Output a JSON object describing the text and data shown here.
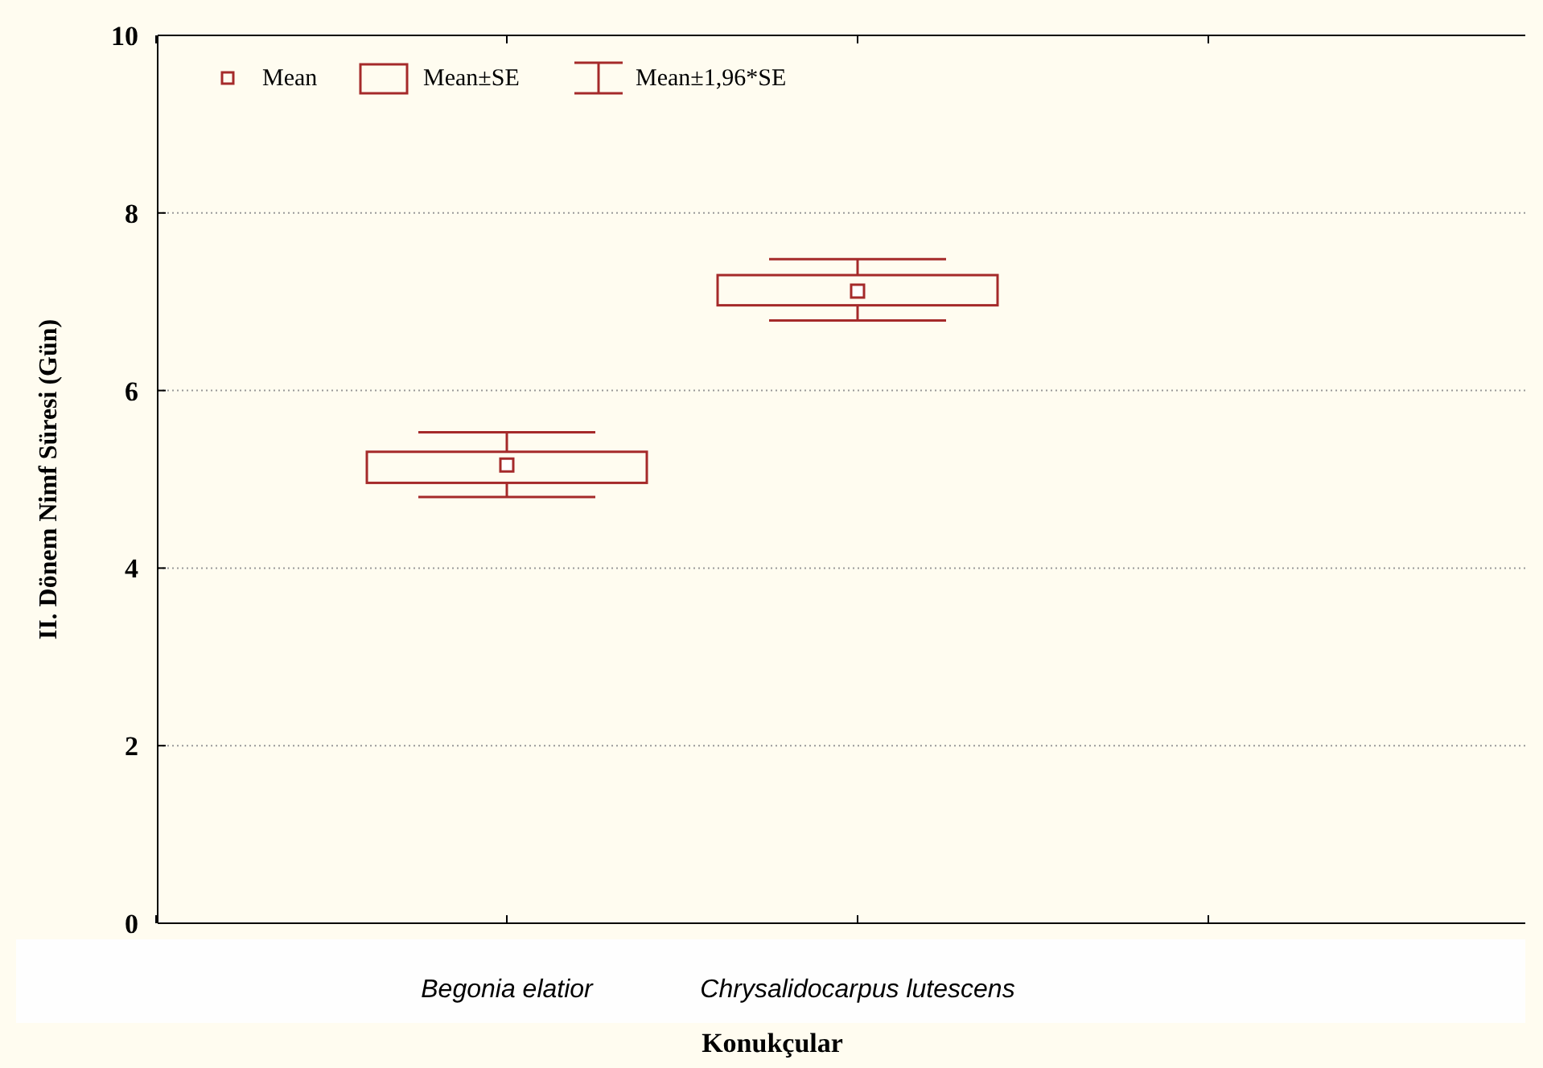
{
  "chart_data": {
    "type": "box",
    "ylabel": "II. Dönem Nimf Süresi (Gün)",
    "xlabel": "Konukçular",
    "categories": [
      "Begonia elatior",
      "Chrysalidocarpus lutescens"
    ],
    "series": [
      {
        "color": "#a52a2a",
        "boxes": [
          {
            "low": 4.8,
            "q1": 4.96,
            "q3": 5.31,
            "high": 5.53,
            "mean": 5.16
          },
          {
            "low": 6.79,
            "q1": 6.96,
            "q3": 7.3,
            "high": 7.48,
            "mean": 7.12
          }
        ]
      }
    ],
    "annotations": [
      "Mean",
      "Mean±SE",
      "Mean±1,96*SE"
    ],
    "ylim": [
      0,
      10
    ],
    "yticks": [
      0,
      2,
      4,
      6,
      8,
      10
    ],
    "grid": "y"
  }
}
